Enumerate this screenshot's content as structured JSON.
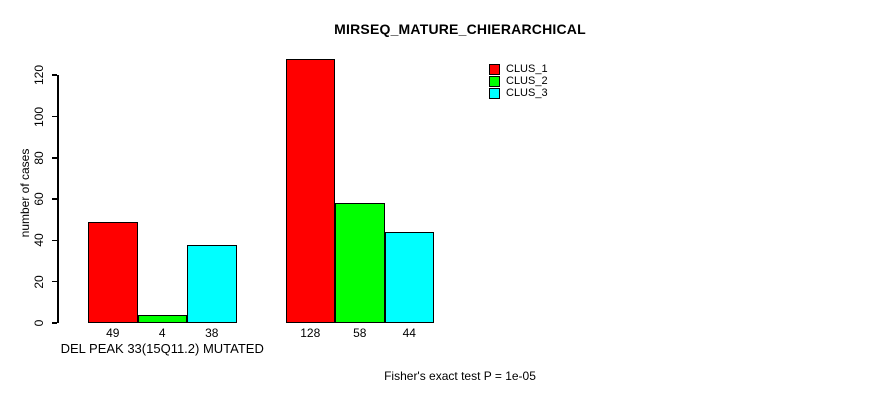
{
  "chart_data": {
    "type": "bar",
    "title": "MIRSEQ_MATURE_CHIERARCHICAL",
    "ylabel": "number of cases",
    "xlabel": "",
    "ylim": [
      0,
      120
    ],
    "yticks": [
      0,
      20,
      40,
      60,
      80,
      100,
      120
    ],
    "grid": false,
    "legend_position": "top-right-inside",
    "categories": [
      "DEL PEAK 33(15Q11.2) MUTATED",
      ""
    ],
    "series": [
      {
        "name": "CLUS_1",
        "color": "#FF0000",
        "values": [
          49,
          128
        ]
      },
      {
        "name": "CLUS_2",
        "color": "#00FF00",
        "values": [
          4,
          58
        ]
      },
      {
        "name": "CLUS_3",
        "color": "#00FFFF",
        "values": [
          38,
          44
        ]
      }
    ],
    "footnote": "Fisher's exact test P = 1e-05"
  }
}
